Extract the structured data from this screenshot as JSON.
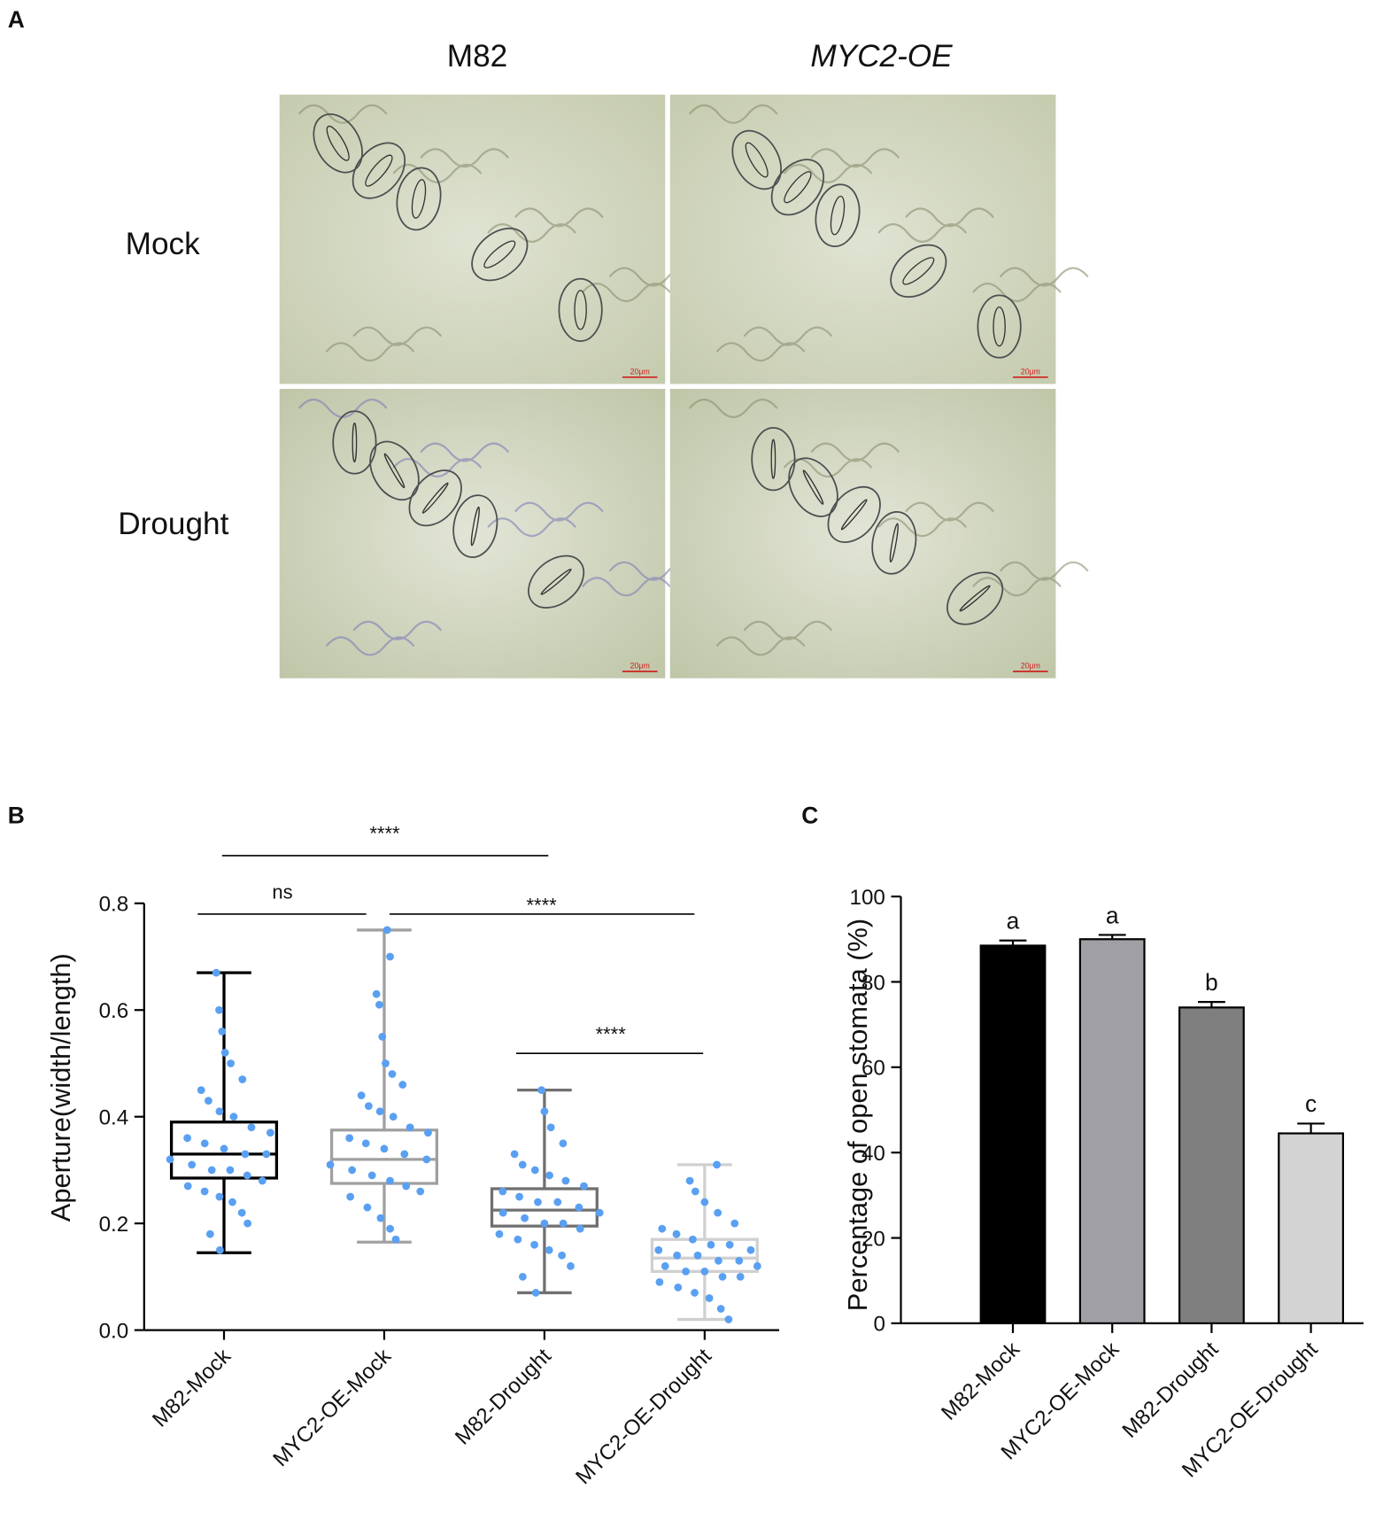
{
  "figure_a": {
    "panel_label": "A",
    "columns": [
      "M82",
      "MYC2-OE"
    ],
    "rows": [
      "Mock",
      "Drought"
    ],
    "scale_bars": [
      "20μm",
      "20μm",
      "20μm",
      "20μm"
    ]
  },
  "chart_data": [
    {
      "type": "box",
      "panel_label": "B",
      "y_label": "Aperture(width/length)",
      "categories": [
        "M82-Mock",
        "MYC2-OE-Mock",
        "M82-Drought",
        "MYC2-OE-Drought"
      ],
      "boxes": [
        {
          "min": 0.145,
          "q1": 0.285,
          "median": 0.33,
          "q3": 0.39,
          "max": 0.67
        },
        {
          "min": 0.165,
          "q1": 0.275,
          "median": 0.32,
          "q3": 0.375,
          "max": 0.75
        },
        {
          "min": 0.07,
          "q1": 0.195,
          "median": 0.225,
          "q3": 0.265,
          "max": 0.45
        },
        {
          "min": 0.02,
          "q1": 0.11,
          "median": 0.135,
          "q3": 0.17,
          "max": 0.31
        }
      ],
      "box_colors": [
        "#000000",
        "#a0a0a0",
        "#707070",
        "#d0d0d0"
      ],
      "point_color": "#5aa0f2",
      "points": [
        [
          0.67,
          0.6,
          0.56,
          0.52,
          0.5,
          0.47,
          0.45,
          0.43,
          0.41,
          0.4,
          0.38,
          0.37,
          0.36,
          0.35,
          0.34,
          0.33,
          0.33,
          0.32,
          0.31,
          0.3,
          0.3,
          0.29,
          0.28,
          0.27,
          0.26,
          0.25,
          0.24,
          0.22,
          0.2,
          0.18,
          0.15
        ],
        [
          0.75,
          0.7,
          0.63,
          0.61,
          0.55,
          0.5,
          0.48,
          0.46,
          0.44,
          0.42,
          0.41,
          0.4,
          0.38,
          0.37,
          0.36,
          0.35,
          0.34,
          0.33,
          0.32,
          0.31,
          0.3,
          0.29,
          0.28,
          0.27,
          0.26,
          0.25,
          0.23,
          0.21,
          0.19,
          0.17
        ],
        [
          0.45,
          0.41,
          0.38,
          0.35,
          0.33,
          0.31,
          0.3,
          0.29,
          0.28,
          0.27,
          0.26,
          0.25,
          0.24,
          0.24,
          0.23,
          0.22,
          0.22,
          0.21,
          0.2,
          0.2,
          0.19,
          0.18,
          0.17,
          0.16,
          0.15,
          0.14,
          0.12,
          0.1,
          0.07
        ],
        [
          0.31,
          0.28,
          0.26,
          0.24,
          0.22,
          0.2,
          0.19,
          0.18,
          0.17,
          0.16,
          0.16,
          0.15,
          0.15,
          0.14,
          0.14,
          0.13,
          0.13,
          0.12,
          0.12,
          0.11,
          0.11,
          0.1,
          0.1,
          0.09,
          0.08,
          0.07,
          0.06,
          0.04,
          0.02
        ]
      ],
      "annotations": [
        "****",
        "ns",
        "****",
        "****"
      ],
      "ylim": [
        0,
        0.8
      ],
      "yticks": [
        {
          "value": 0,
          "label": "0.0"
        },
        0.2,
        0.4,
        0.6,
        0.8
      ]
    },
    {
      "type": "bar",
      "panel_label": "C",
      "y_label": "Percentage of open stomata (%)",
      "categories": [
        "M82-Mock",
        "MYC2-OE-Mock",
        "M82-Drought",
        "MYC2-OE-Drought"
      ],
      "values": [
        88.5,
        90,
        74,
        44.5
      ],
      "errors": [
        1.2,
        1.0,
        1.3,
        2.3
      ],
      "letters": [
        "a",
        "a",
        "b",
        "c"
      ],
      "colors": [
        "#000000",
        "#a0a0a4",
        "#7f7f7f",
        "#d3d3d3"
      ],
      "ylim": [
        0,
        100
      ],
      "yticks": [
        0,
        20,
        40,
        60,
        80,
        100
      ]
    }
  ]
}
